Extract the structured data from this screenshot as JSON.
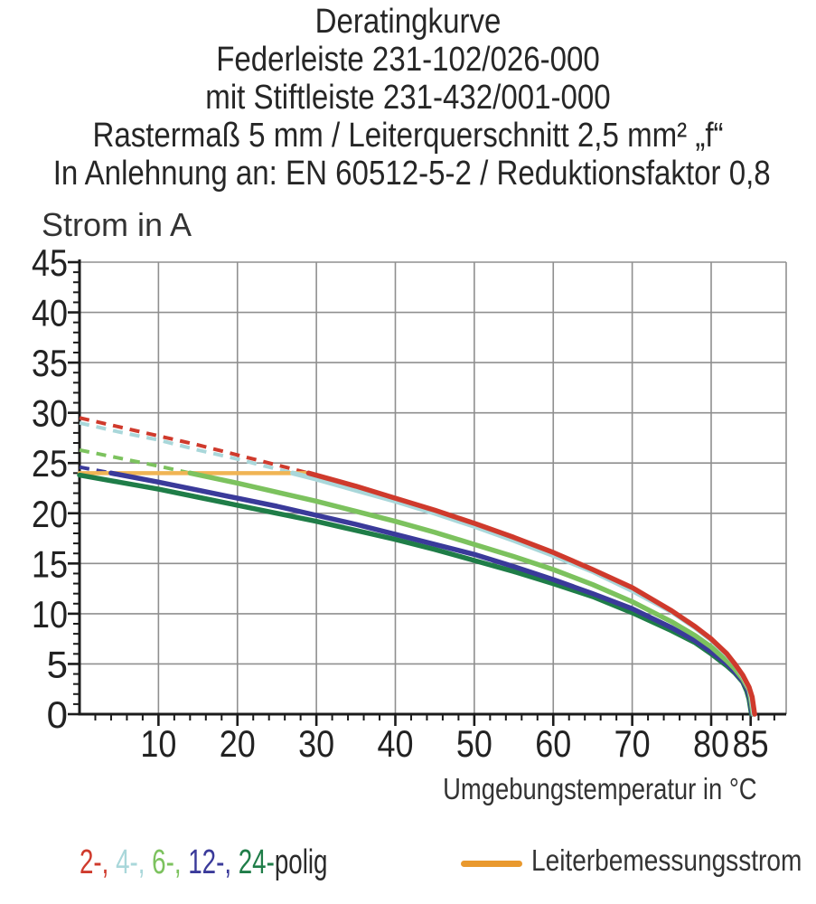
{
  "title_lines": [
    "Deratingkurve",
    "Federleiste 231-102/026-000",
    "mit Stiftleiste 231-432/001-000",
    "Rastermaß 5 mm / Leiterquerschnitt 2,5 mm² „f“",
    "In Anlehnung an: EN 60512-5-2 / Reduktionsfaktor 0,8"
  ],
  "chart_data": {
    "type": "line",
    "title": "Deratingkurve",
    "ylabel": "Strom in A",
    "xlabel": "Umgebungstemperatur in °C",
    "xlim": [
      0,
      89.5
    ],
    "ylim": [
      0,
      45
    ],
    "x_major_ticks": [
      10,
      20,
      30,
      40,
      50,
      60,
      70,
      80,
      85
    ],
    "x_tick_labels": [
      "10",
      "20",
      "30",
      "40",
      "50",
      "60",
      "70",
      "80",
      "85"
    ],
    "y_major_ticks": [
      0,
      5,
      10,
      15,
      20,
      25,
      30,
      35,
      40,
      45
    ],
    "y_tick_labels": [
      "0",
      "5",
      "10",
      "15",
      "20",
      "25",
      "30",
      "35",
      "40",
      "45"
    ],
    "x_minor_step": 2,
    "y_minor_step": 1,
    "grid": true,
    "grid_color": "#8f8f8f",
    "axis_color": "#1b1b1b",
    "rated_current_line": {
      "label": "Leiterbemessungsstrom",
      "value": 24.0,
      "x_start": 0,
      "x_end": 29,
      "color": "#e9992e",
      "plot_color": "#f0b454"
    },
    "series": [
      {
        "name": "2-polig",
        "poles": 2,
        "color": "#cf3a2c",
        "dashed": [
          [
            0,
            29.5
          ],
          [
            5,
            28.6
          ],
          [
            10,
            27.7
          ],
          [
            15,
            26.8
          ],
          [
            20,
            25.8
          ],
          [
            25,
            24.8
          ],
          [
            29,
            24.0
          ]
        ],
        "solid": [
          [
            29,
            24.0
          ],
          [
            35,
            22.7
          ],
          [
            40,
            21.5
          ],
          [
            45,
            20.3
          ],
          [
            50,
            19.0
          ],
          [
            55,
            17.6
          ],
          [
            60,
            16.1
          ],
          [
            65,
            14.4
          ],
          [
            70,
            12.6
          ],
          [
            75,
            10.3
          ],
          [
            78,
            8.7
          ],
          [
            80,
            7.5
          ],
          [
            82,
            6.0
          ],
          [
            83,
            5.0
          ],
          [
            84,
            3.9
          ],
          [
            84.8,
            2.7
          ],
          [
            85.2,
            1.7
          ],
          [
            85.5,
            0
          ]
        ]
      },
      {
        "name": "4-polig",
        "poles": 4,
        "color": "#a9d7da",
        "dashed": [
          [
            0,
            29.0
          ],
          [
            5,
            28.1
          ],
          [
            10,
            27.3
          ],
          [
            15,
            26.3
          ],
          [
            20,
            25.4
          ],
          [
            25,
            24.4
          ],
          [
            27,
            24.0
          ]
        ],
        "solid": [
          [
            27,
            24.0
          ],
          [
            30,
            23.4
          ],
          [
            35,
            22.3
          ],
          [
            40,
            21.2
          ],
          [
            45,
            20.0
          ],
          [
            50,
            18.7
          ],
          [
            55,
            17.3
          ],
          [
            60,
            15.8
          ],
          [
            65,
            14.2
          ],
          [
            70,
            12.3
          ],
          [
            75,
            10.2
          ],
          [
            78,
            8.6
          ],
          [
            80,
            7.4
          ],
          [
            82,
            5.9
          ],
          [
            83,
            5.0
          ],
          [
            84,
            3.8
          ],
          [
            84.8,
            2.6
          ],
          [
            85.1,
            1.7
          ],
          [
            85.4,
            0
          ]
        ]
      },
      {
        "name": "6-polig",
        "poles": 6,
        "color": "#7cc25e",
        "dashed": [
          [
            0,
            26.3
          ],
          [
            5,
            25.5
          ],
          [
            10,
            24.7
          ],
          [
            14,
            24.0
          ]
        ],
        "solid": [
          [
            14,
            24.0
          ],
          [
            20,
            23.0
          ],
          [
            25,
            22.1
          ],
          [
            30,
            21.2
          ],
          [
            35,
            20.2
          ],
          [
            40,
            19.2
          ],
          [
            45,
            18.1
          ],
          [
            50,
            16.9
          ],
          [
            55,
            15.7
          ],
          [
            60,
            14.4
          ],
          [
            65,
            12.9
          ],
          [
            70,
            11.2
          ],
          [
            75,
            9.2
          ],
          [
            78,
            7.8
          ],
          [
            80,
            6.7
          ],
          [
            82,
            5.3
          ],
          [
            83,
            4.5
          ],
          [
            84,
            3.5
          ],
          [
            84.8,
            2.4
          ],
          [
            85.0,
            1.6
          ],
          [
            85.3,
            0
          ]
        ]
      },
      {
        "name": "12-polig",
        "poles": 12,
        "color": "#3a3a9a",
        "dashed": [
          [
            0,
            24.6
          ],
          [
            4,
            24.0
          ]
        ],
        "solid": [
          [
            4,
            24.0
          ],
          [
            10,
            23.1
          ],
          [
            15,
            22.3
          ],
          [
            20,
            21.5
          ],
          [
            25,
            20.7
          ],
          [
            30,
            19.8
          ],
          [
            35,
            18.9
          ],
          [
            40,
            17.9
          ],
          [
            45,
            16.9
          ],
          [
            50,
            15.9
          ],
          [
            55,
            14.7
          ],
          [
            60,
            13.4
          ],
          [
            65,
            12.0
          ],
          [
            70,
            10.5
          ],
          [
            75,
            8.6
          ],
          [
            78,
            7.3
          ],
          [
            80,
            6.2
          ],
          [
            82,
            5.0
          ],
          [
            83,
            4.2
          ],
          [
            84,
            3.3
          ],
          [
            84.6,
            2.4
          ],
          [
            84.9,
            1.6
          ],
          [
            85.2,
            0
          ]
        ]
      },
      {
        "name": "24-polig",
        "poles": 24,
        "color": "#1f7d48",
        "dashed": [],
        "solid": [
          [
            0,
            23.8
          ],
          [
            5,
            23.1
          ],
          [
            10,
            22.4
          ],
          [
            15,
            21.6
          ],
          [
            20,
            20.8
          ],
          [
            25,
            20.0
          ],
          [
            30,
            19.2
          ],
          [
            35,
            18.3
          ],
          [
            40,
            17.4
          ],
          [
            45,
            16.4
          ],
          [
            50,
            15.3
          ],
          [
            55,
            14.2
          ],
          [
            60,
            13.0
          ],
          [
            65,
            11.7
          ],
          [
            70,
            10.1
          ],
          [
            75,
            8.3
          ],
          [
            78,
            7.1
          ],
          [
            80,
            6.0
          ],
          [
            82,
            4.8
          ],
          [
            83,
            4.1
          ],
          [
            84,
            3.2
          ],
          [
            84.5,
            2.3
          ],
          [
            84.8,
            1.5
          ],
          [
            85.1,
            0
          ]
        ]
      }
    ]
  },
  "legend": {
    "pole_segments": [
      {
        "text": "2-, ",
        "color": "#cf3a2c"
      },
      {
        "text": "4-, ",
        "color": "#a9d7da"
      },
      {
        "text": "6-, ",
        "color": "#7cc25e"
      },
      {
        "text": "12-, ",
        "color": "#3a3a9a"
      },
      {
        "text": "24-",
        "color": "#1f7d48"
      },
      {
        "text": "polig",
        "color": "#2a2a2a"
      }
    ]
  }
}
